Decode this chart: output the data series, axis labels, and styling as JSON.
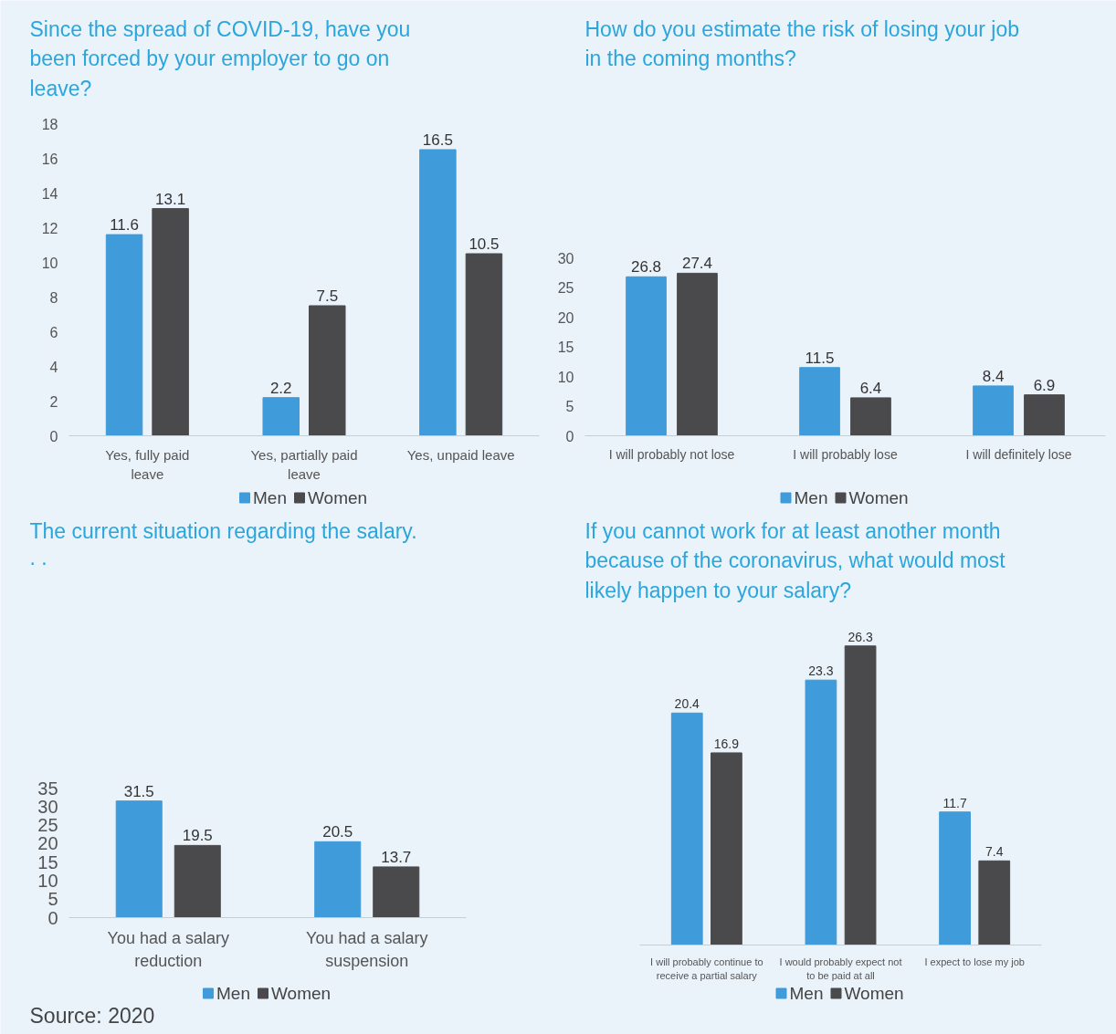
{
  "chart_data": [
    {
      "type": "bar",
      "title": "Since the spread of COVID-19, have you been forced by your employer to go on leave?",
      "categories": [
        "Yes, fully paid leave",
        "Yes, partially paid leave",
        "Yes, unpaid leave"
      ],
      "series": [
        {
          "name": "Men",
          "color": "#3f9bd9",
          "values": [
            11.6,
            2.2,
            16.5
          ]
        },
        {
          "name": "Women",
          "color": "#4a4a4c",
          "values": [
            13.1,
            7.5,
            10.5
          ]
        }
      ],
      "ylim": [
        0,
        18
      ],
      "yticks": [
        0,
        2,
        4,
        6,
        8,
        10,
        12,
        14,
        16,
        18
      ],
      "data_labels": true,
      "legend": "bottom",
      "grid": false
    },
    {
      "type": "bar",
      "title": "How do you estimate the risk of losing your job in the coming months?",
      "categories": [
        "I will probably not lose",
        "I will probably lose",
        "I will definitely lose"
      ],
      "series": [
        {
          "name": "Men",
          "color": "#3f9bd9",
          "values": [
            26.8,
            11.5,
            8.4
          ]
        },
        {
          "name": "Women",
          "color": "#4a4a4c",
          "values": [
            27.4,
            6.4,
            6.9
          ]
        }
      ],
      "ylim": [
        0,
        30
      ],
      "yticks": [
        0,
        5,
        10,
        15,
        20,
        25,
        30
      ],
      "data_labels": true,
      "legend": "bottom",
      "grid": false
    },
    {
      "type": "bar",
      "title": "The current situation regarding the salary.",
      "subtitle": ". .",
      "categories": [
        "You had a salary reduction",
        "You had a salary suspension"
      ],
      "series": [
        {
          "name": "Men",
          "color": "#3f9bd9",
          "values": [
            31.5,
            20.5
          ]
        },
        {
          "name": "Women",
          "color": "#4a4a4c",
          "values": [
            19.5,
            13.7
          ]
        }
      ],
      "ylim": [
        0,
        35
      ],
      "yticks": [
        0,
        5,
        10,
        15,
        20,
        25,
        30,
        35
      ],
      "data_labels": true,
      "legend": "bottom",
      "grid": false,
      "annotations": [
        "Source: 2020"
      ]
    },
    {
      "type": "bar",
      "title": "If you cannot work for at least another month because of the coronavirus, what would most likely happen to your salary?",
      "categories": [
        "I will probably continue to receive a partial salary",
        "I would probably expect not to be paid at all",
        "I expect to lose my job"
      ],
      "series": [
        {
          "name": "Men",
          "color": "#3f9bd9",
          "values": [
            20.4,
            23.3,
            11.7
          ]
        },
        {
          "name": "Women",
          "color": "#4a4a4c",
          "values": [
            16.9,
            26.3,
            7.4
          ]
        }
      ],
      "data_labels": true,
      "legend": "bottom",
      "tick_labels": "x"
    }
  ]
}
